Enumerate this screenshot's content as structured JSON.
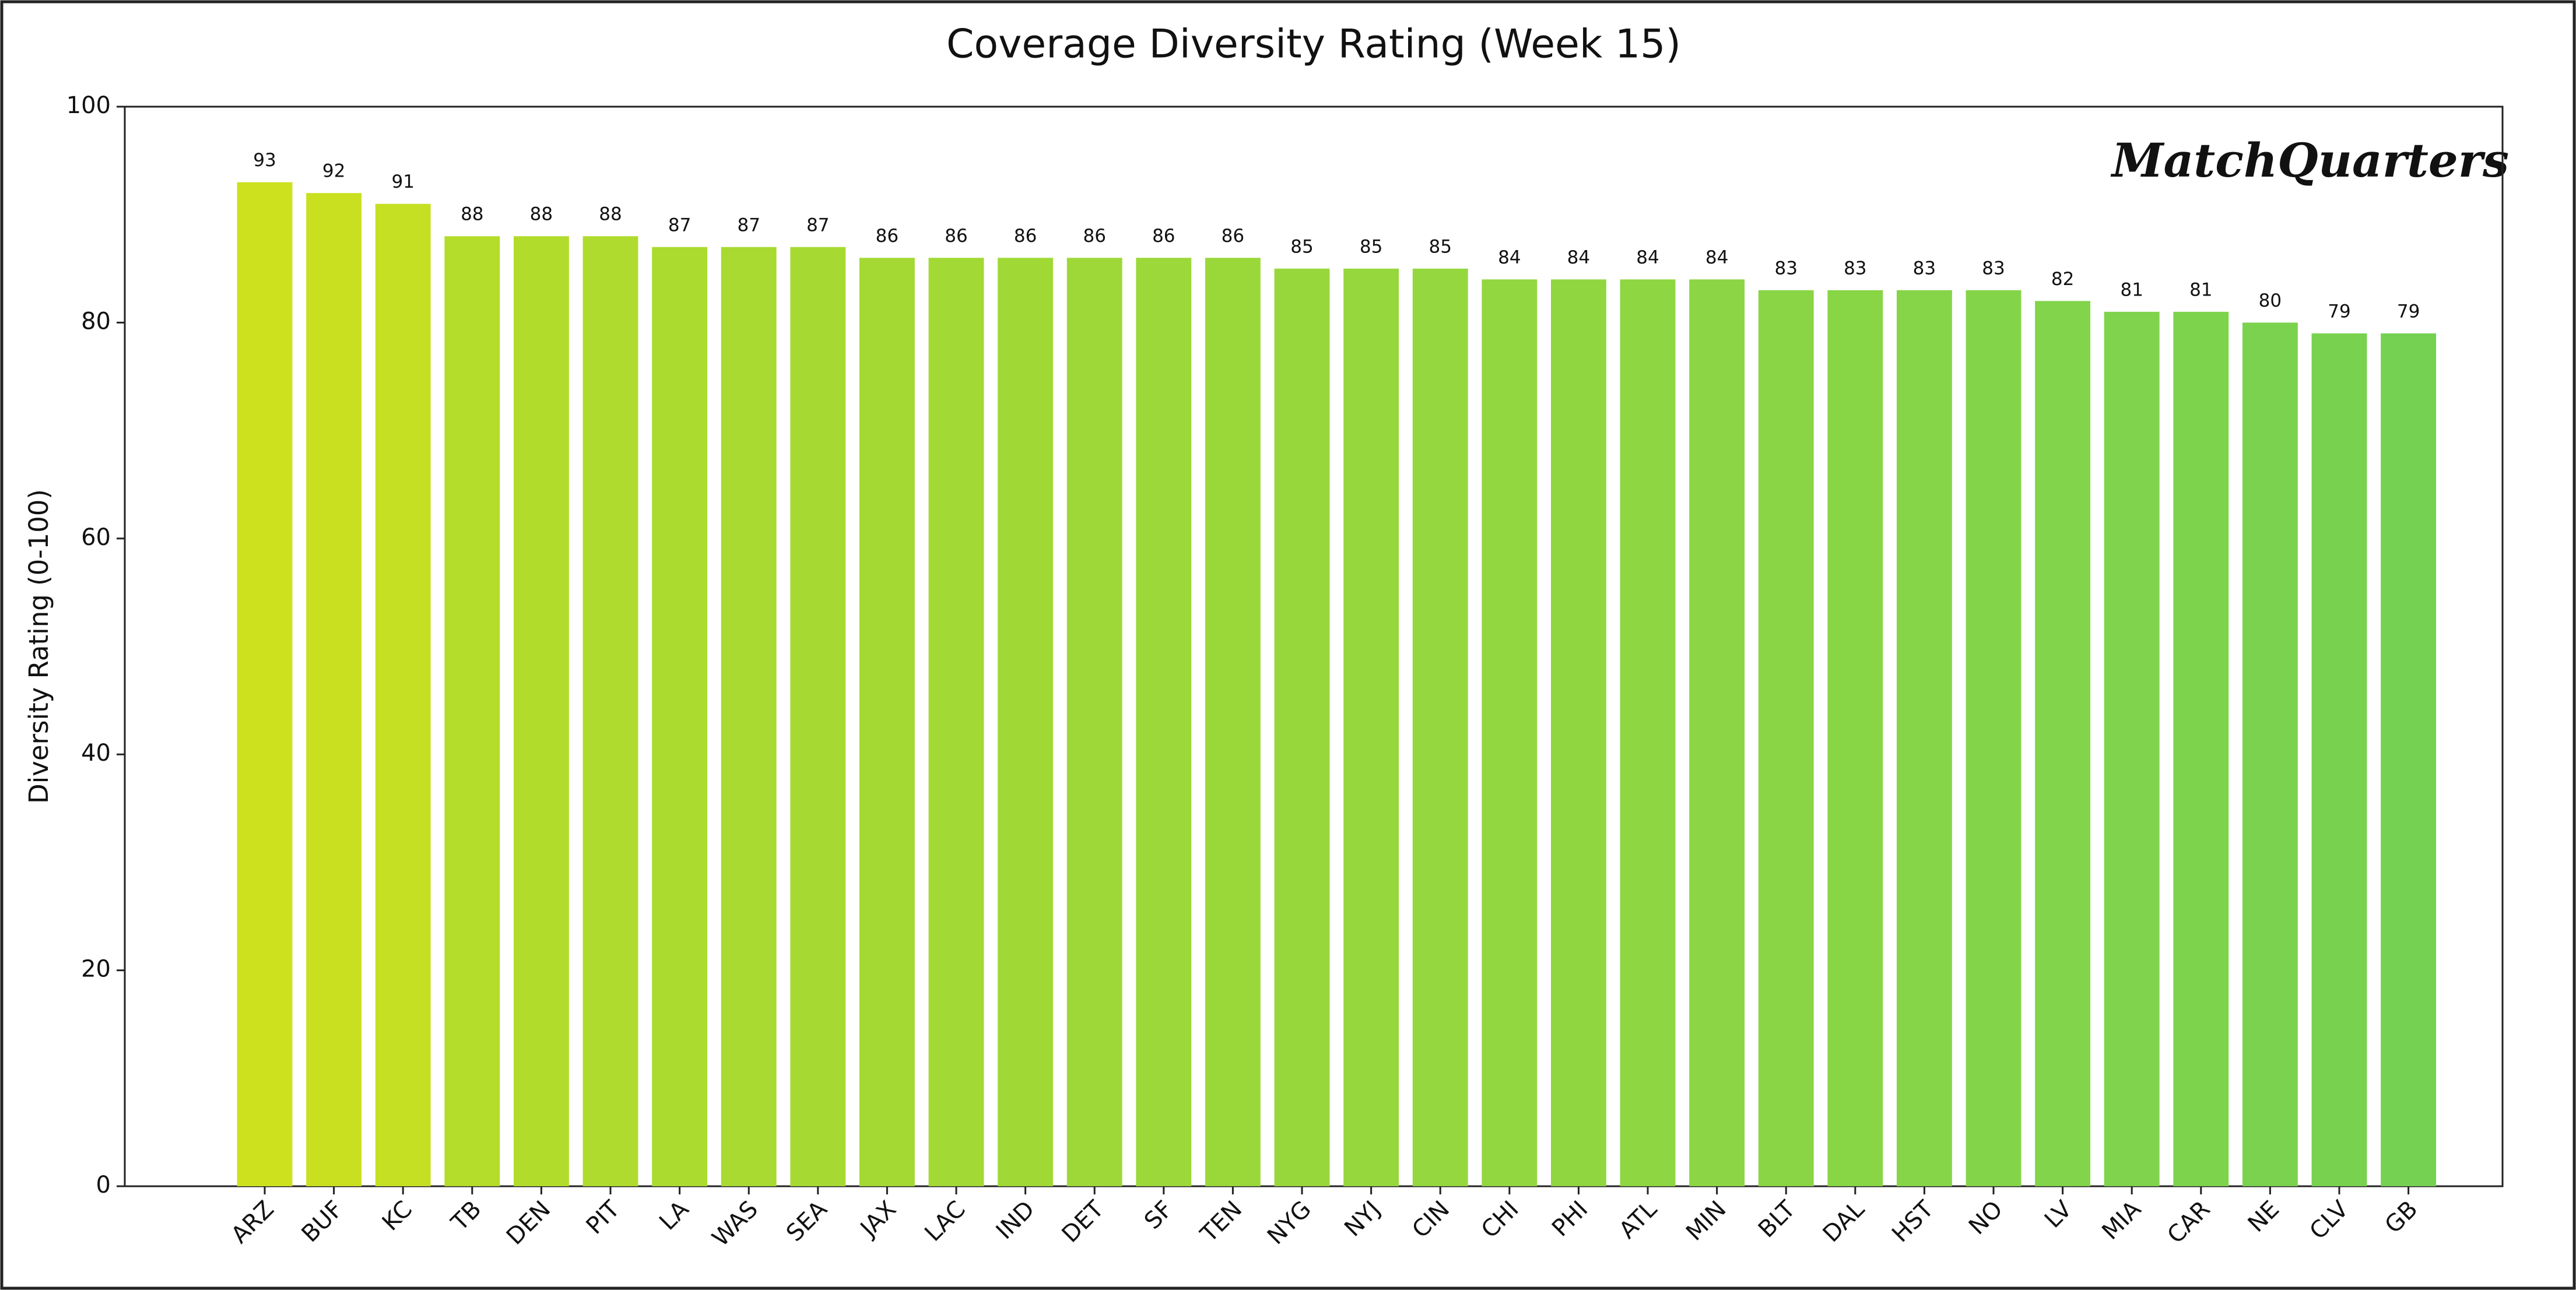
{
  "chart_data": {
    "type": "bar",
    "title": "Coverage Diversity Rating (Week 15)",
    "y_label": "Diversity Rating (0-100)",
    "watermark": "MatchQuarters",
    "categories": [
      "ARZ",
      "BUF",
      "KC",
      "TB",
      "DEN",
      "PIT",
      "LA",
      "WAS",
      "SEA",
      "JAX",
      "LAC",
      "IND",
      "DET",
      "SF",
      "TEN",
      "NYG",
      "NYJ",
      "CIN",
      "CHI",
      "PHI",
      "ATL",
      "MIN",
      "BLT",
      "DAL",
      "HST",
      "NO",
      "LV",
      "MIA",
      "CAR",
      "NE",
      "CLV",
      "GB"
    ],
    "values": [
      93,
      92,
      91,
      88,
      88,
      88,
      87,
      87,
      87,
      86,
      86,
      86,
      86,
      86,
      86,
      85,
      85,
      85,
      84,
      84,
      84,
      84,
      83,
      83,
      83,
      83,
      82,
      81,
      81,
      80,
      79,
      79
    ],
    "colors": [
      "#cde11f",
      "#c9e021",
      "#c5df23",
      "#b4dc2a",
      "#b1dc2b",
      "#aedb2d",
      "#abdb2f",
      "#a8da31",
      "#a6da32",
      "#a4d934",
      "#a2d935",
      "#a0d936",
      "#9ed838",
      "#9cd839",
      "#9ad83a",
      "#98d73c",
      "#96d73d",
      "#94d73e",
      "#92d640",
      "#90d641",
      "#8ed642",
      "#8cd544",
      "#8ad545",
      "#88d546",
      "#86d448",
      "#84d449",
      "#82d44a",
      "#80d34c",
      "#7ed34d",
      "#7bd24f",
      "#78d250",
      "#75d152"
    ],
    "ylim": [
      0,
      100
    ],
    "yticks": [
      0,
      20,
      40,
      60,
      80,
      100
    ],
    "grid": false
  }
}
